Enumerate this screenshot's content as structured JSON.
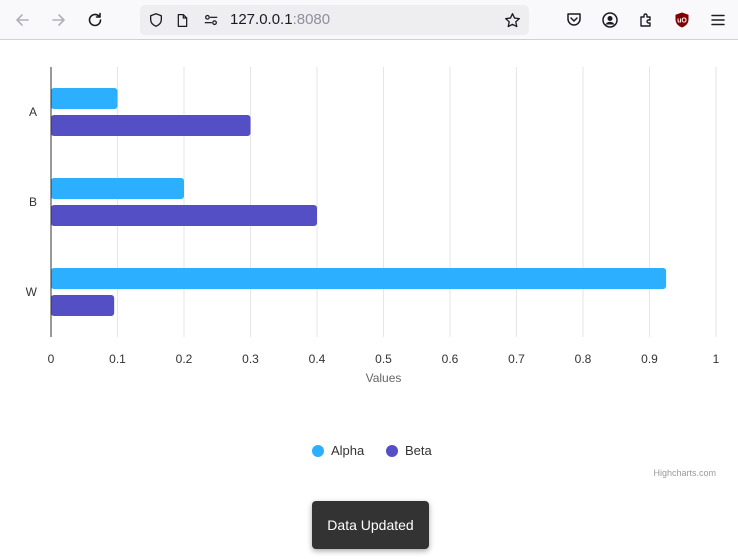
{
  "browser": {
    "url_host": "127.0.0.1",
    "url_port": ":8080",
    "icons": [
      "back-arrow-icon",
      "forward-arrow-icon",
      "reload-icon",
      "shield-icon",
      "page-icon",
      "permissions-icon",
      "bookmark-star-icon",
      "pocket-icon",
      "account-icon",
      "extensions-icon",
      "ublock-icon",
      "menu-icon"
    ]
  },
  "chart_data": {
    "type": "bar",
    "orientation": "horizontal",
    "categories": [
      "A",
      "B",
      "W"
    ],
    "series": [
      {
        "name": "Alpha",
        "values": [
          0.1,
          0.2,
          0.925
        ],
        "color": "#2caffe"
      },
      {
        "name": "Beta",
        "values": [
          0.3,
          0.4,
          0.095
        ],
        "color": "#544fc5"
      }
    ],
    "xlabel": "Values",
    "xlim": [
      0,
      1
    ],
    "xticks": [
      "0",
      "0.1",
      "0.2",
      "0.3",
      "0.4",
      "0.5",
      "0.6",
      "0.7",
      "0.8",
      "0.9",
      "1"
    ],
    "grid": true,
    "legend_position": "bottom-center",
    "credits": "Highcharts.com"
  },
  "toast": {
    "text": "Data Updated"
  }
}
